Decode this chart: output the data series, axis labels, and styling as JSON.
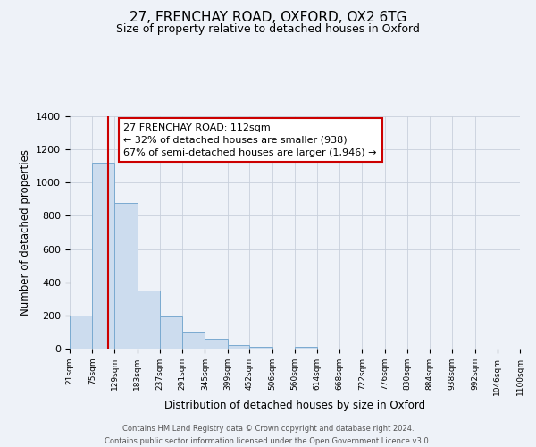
{
  "title": "27, FRENCHAY ROAD, OXFORD, OX2 6TG",
  "subtitle": "Size of property relative to detached houses in Oxford",
  "xlabel": "Distribution of detached houses by size in Oxford",
  "ylabel": "Number of detached properties",
  "bar_values": [
    200,
    1120,
    880,
    350,
    195,
    100,
    57,
    22,
    13,
    0,
    12,
    0,
    0,
    0,
    0,
    0,
    0,
    0,
    0,
    0
  ],
  "bin_edges": [
    21,
    75,
    129,
    183,
    237,
    291,
    345,
    399,
    452,
    506,
    560,
    614,
    668,
    722,
    776,
    830,
    884,
    938,
    992,
    1046,
    1100
  ],
  "tick_labels": [
    "21sqm",
    "75sqm",
    "129sqm",
    "183sqm",
    "237sqm",
    "291sqm",
    "345sqm",
    "399sqm",
    "452sqm",
    "506sqm",
    "560sqm",
    "614sqm",
    "668sqm",
    "722sqm",
    "776sqm",
    "830sqm",
    "884sqm",
    "938sqm",
    "992sqm",
    "1046sqm",
    "1100sqm"
  ],
  "bar_color": "#ccdcee",
  "bar_edge_color": "#7aaad0",
  "vline_x": 112,
  "vline_color": "#cc0000",
  "ylim": [
    0,
    1400
  ],
  "yticks": [
    0,
    200,
    400,
    600,
    800,
    1000,
    1200,
    1400
  ],
  "annotation_title": "27 FRENCHAY ROAD: 112sqm",
  "annotation_line1": "← 32% of detached houses are smaller (938)",
  "annotation_line2": "67% of semi-detached houses are larger (1,946) →",
  "footer_line1": "Contains HM Land Registry data © Crown copyright and database right 2024.",
  "footer_line2": "Contains public sector information licensed under the Open Government Licence v3.0.",
  "background_color": "#eef2f8",
  "grid_color": "#c8d0dc",
  "title_fontsize": 11,
  "subtitle_fontsize": 9
}
